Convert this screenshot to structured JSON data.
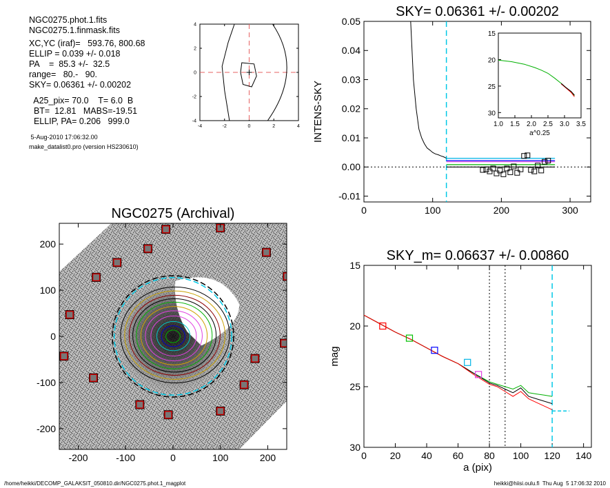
{
  "info": {
    "lines_a": [
      "NGC0275.phot.1.fits",
      "NGC0275.1.finmask.fits"
    ],
    "lines_b": [
      "XC,YC (iraf)=   593.76, 800.68",
      "ELLIP = 0.039 +/- 0.018",
      "PA    =  85.3 +/-  32.5",
      "range=   80.-   90.",
      "SKY= 0.06361 +/- 0.00202"
    ],
    "lines_c": [
      "  A25_pix= 70.0    T= 6.0  B",
      "  BT=  12.81   MABS=-19.51",
      "  ELLIP, PA= 0.206   999.0"
    ],
    "timestamp": " 5-Aug-2010 17:06:32.00",
    "program": "make_datalist0.pro (version HS230610)"
  },
  "footer": {
    "left": "/home/heikki/DECOMP_GALAKSIT_050810.dir/NGC0275.phot.1_magplot",
    "right": "heikki@hiisi.oulu.fi  Thu Aug  5 17:06:32 2010"
  },
  "chart_data": [
    {
      "id": "contour",
      "type": "scatter",
      "title": "",
      "xlabel": "",
      "ylabel": "",
      "xlim": [
        -4,
        4
      ],
      "ylim": [
        -4,
        4
      ],
      "xticks": [
        "-4",
        "-2",
        "0",
        "2",
        "4"
      ],
      "yticks": [
        "-4",
        "-2",
        "0",
        "2",
        "4"
      ],
      "crosshair": [
        0,
        0
      ],
      "colors": {
        "cross": "#e66060",
        "contour": "#000000"
      }
    },
    {
      "id": "sky",
      "type": "line",
      "title": "SKY= 0.06361 +/- 0.00202",
      "xlabel": "",
      "ylabel": "INTENS-SKY",
      "xlim": [
        0,
        330
      ],
      "ylim": [
        -0.012,
        0.05
      ],
      "xticks": [
        "0",
        "100",
        "200",
        "300"
      ],
      "yticks": [
        "-0.01",
        "0.00",
        "0.01",
        "0.02",
        "0.03",
        "0.04",
        "0.05"
      ],
      "vline": 120,
      "series": [
        {
          "color": "#000000",
          "x": [
            68,
            72,
            76,
            80,
            84,
            88,
            92,
            96,
            100,
            104,
            108,
            112,
            116,
            120
          ],
          "y": [
            0.05,
            0.03,
            0.02,
            0.013,
            0.01,
            0.008,
            0.0065,
            0.0058,
            0.005,
            0.0045,
            0.0042,
            0.0038,
            0.0035,
            0.003
          ]
        }
      ],
      "sky_levels": [
        {
          "color": "#00b4e6",
          "y": 0.003
        },
        {
          "color": "#0000ff",
          "y": 0.0022
        },
        {
          "color": "#e040e0",
          "y": 0.0018
        },
        {
          "color": "#00b000",
          "y": 0.0008
        },
        {
          "color": "#000000",
          "y": 0.0
        }
      ],
      "squares": [
        {
          "x": 173,
          "y": -0.001
        },
        {
          "x": 178,
          "y": -0.0008
        },
        {
          "x": 183,
          "y": -0.0015
        },
        {
          "x": 188,
          "y": -0.0005
        },
        {
          "x": 193,
          "y": -0.0022
        },
        {
          "x": 198,
          "y": -0.0012
        },
        {
          "x": 203,
          "y": -0.0025
        },
        {
          "x": 208,
          "y": -0.0005
        },
        {
          "x": 213,
          "y": -0.0018
        },
        {
          "x": 218,
          "y": 0.0002
        },
        {
          "x": 223,
          "y": -0.002
        },
        {
          "x": 228,
          "y": -0.0008
        },
        {
          "x": 233,
          "y": 0.0038
        },
        {
          "x": 238,
          "y": 0.004
        },
        {
          "x": 243,
          "y": -0.001
        },
        {
          "x": 248,
          "y": -0.0015
        },
        {
          "x": 253,
          "y": 0.0005
        },
        {
          "x": 258,
          "y": -0.0012
        },
        {
          "x": 263,
          "y": 0.0018
        },
        {
          "x": 268,
          "y": 0.0022
        }
      ]
    },
    {
      "id": "inset",
      "type": "line",
      "title": "",
      "xlabel": "a^0.25",
      "ylabel": "",
      "xlim": [
        1.0,
        3.5
      ],
      "ylim": [
        15,
        31
      ],
      "xticks": [
        "1.0",
        "1.5",
        "2.0",
        "2.5",
        "3.0",
        "3.5"
      ],
      "yticks": [
        "15",
        "20",
        "25",
        "30"
      ],
      "series": [
        {
          "color": "#00b000",
          "x": [
            1.0,
            1.4,
            1.8,
            2.1,
            2.3,
            2.5,
            2.7,
            2.9,
            3.05,
            3.2,
            3.3
          ],
          "y": [
            20.1,
            20.4,
            20.9,
            21.5,
            22.0,
            22.6,
            23.5,
            24.5,
            25.3,
            26.1,
            26.8
          ]
        },
        {
          "color": "#ff0000",
          "x": [
            2.9,
            3.05,
            3.2,
            3.3
          ],
          "y": [
            24.6,
            25.4,
            26.2,
            27.0
          ]
        },
        {
          "color": "#000000",
          "x": [
            2.9,
            3.05,
            3.2,
            3.3
          ],
          "y": [
            24.5,
            25.3,
            26.0,
            26.7
          ]
        }
      ]
    },
    {
      "id": "image",
      "type": "scatter",
      "title": "NGC0275 (Archival)",
      "xlabel": "",
      "ylabel": "",
      "xlim": [
        -240,
        240
      ],
      "ylim": [
        -245,
        245
      ],
      "xticks": [
        "-200",
        "-100",
        "0",
        "100",
        "200"
      ],
      "yticks": [
        "-200",
        "-100",
        "0",
        "100",
        "200"
      ],
      "center": [
        0,
        0
      ],
      "masked_stars": [
        [
          -15,
          232
        ],
        [
          100,
          235
        ],
        [
          -53,
          190
        ],
        [
          -118,
          160
        ],
        [
          -162,
          128
        ],
        [
          197,
          182
        ],
        [
          241,
          130
        ],
        [
          -218,
          47
        ],
        [
          -230,
          -43
        ],
        [
          -168,
          -90
        ],
        [
          235,
          -15
        ],
        [
          173,
          -48
        ],
        [
          150,
          -105
        ],
        [
          -70,
          -148
        ],
        [
          -10,
          -170
        ],
        [
          100,
          -162
        ]
      ],
      "ellipse_radii": [
        15,
        25,
        35,
        48,
        60,
        70,
        80,
        88,
        96,
        106,
        115
      ]
    },
    {
      "id": "mag",
      "type": "line",
      "title": "SKY_m=  0.06637 +/- 0.00860",
      "xlabel": "a (pix)",
      "ylabel": "mag",
      "xlim": [
        0,
        145
      ],
      "ylim": [
        15,
        30
      ],
      "xticks": [
        "0",
        "20",
        "40",
        "60",
        "80",
        "100",
        "120",
        "140"
      ],
      "yticks": [
        "15",
        "20",
        "25",
        "30"
      ],
      "vlines_dotted": [
        80,
        90
      ],
      "vline_dashed": 120,
      "sky_line": {
        "x": [
          120,
          131
        ],
        "y": 27.0
      },
      "series": [
        {
          "color": "#00b000",
          "x": [
            0,
            10,
            20,
            30,
            40,
            50,
            60,
            70,
            80,
            85,
            90,
            95,
            100,
            105,
            110,
            115,
            120
          ],
          "y": [
            19.1,
            19.8,
            20.5,
            21.1,
            21.8,
            22.5,
            23.1,
            23.9,
            24.6,
            24.8,
            25.0,
            25.2,
            24.9,
            25.5,
            25.6,
            25.7,
            25.8
          ]
        },
        {
          "color": "#000000",
          "x": [
            0,
            10,
            20,
            30,
            40,
            50,
            60,
            70,
            80,
            85,
            90,
            95,
            100,
            105,
            110,
            115,
            120
          ],
          "y": [
            19.1,
            19.8,
            20.5,
            21.1,
            21.8,
            22.5,
            23.1,
            23.9,
            24.7,
            24.9,
            25.2,
            25.5,
            25.1,
            25.8,
            26.0,
            26.2,
            26.4
          ]
        },
        {
          "color": "#ff0000",
          "x": [
            0,
            10,
            20,
            30,
            40,
            50,
            60,
            70,
            80,
            85,
            90,
            95,
            100,
            105,
            110,
            115,
            120
          ],
          "y": [
            19.1,
            19.8,
            20.5,
            21.1,
            21.8,
            22.5,
            23.1,
            24.0,
            24.8,
            25.0,
            25.4,
            25.8,
            25.4,
            26.0,
            26.3,
            26.6,
            26.9
          ]
        }
      ],
      "markers": [
        {
          "x": 12,
          "y": 20.0,
          "color": "#ff0000"
        },
        {
          "x": 29,
          "y": 21.0,
          "color": "#00c000"
        },
        {
          "x": 45,
          "y": 22.0,
          "color": "#0000ff"
        },
        {
          "x": 66,
          "y": 23.0,
          "color": "#00b4e6"
        },
        {
          "x": 73,
          "y": 24.0,
          "color": "#e040e0"
        }
      ]
    }
  ]
}
